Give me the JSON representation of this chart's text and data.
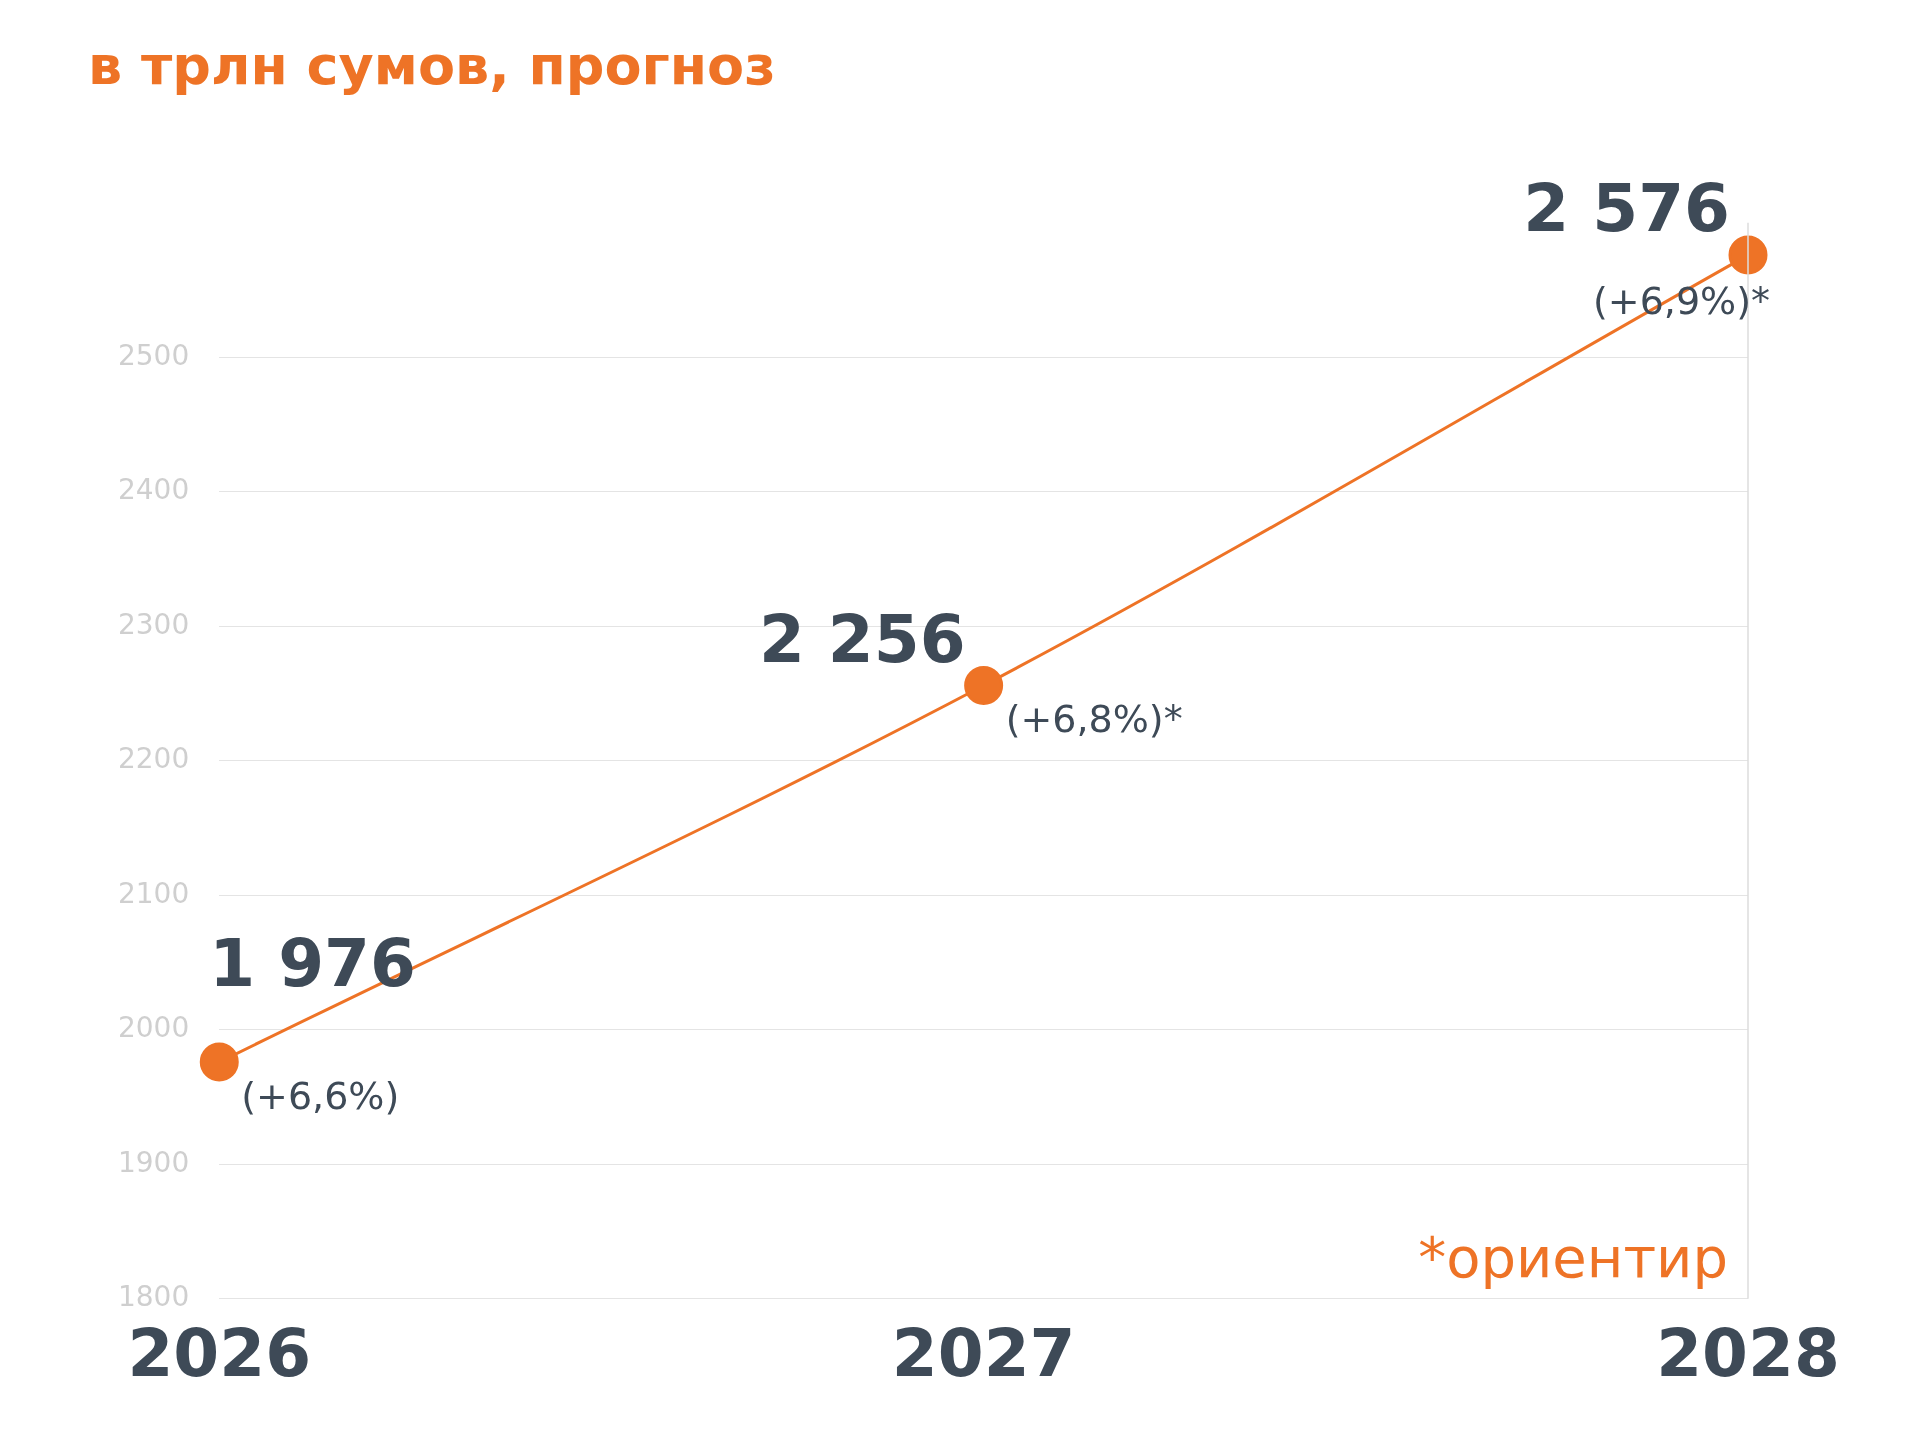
{
  "chart_data": {
    "type": "line",
    "title": "в трлн сумов, прогноз",
    "categories": [
      "2026",
      "2027",
      "2028"
    ],
    "series": [
      {
        "color": "#ee7326",
        "values": [
          1976,
          2256,
          2576
        ],
        "value_labels": [
          "1 976",
          "2 256",
          "2 576"
        ]
      }
    ],
    "ylim": [
      1800,
      2600
    ],
    "yticks": [
      1800,
      1900,
      2000,
      2100,
      2200,
      2300,
      2400,
      2500
    ],
    "grid": "y",
    "marker": "circle",
    "line_style": "solid",
    "legend": false,
    "ref_lines": [
      {
        "axis": "x",
        "value": "2028",
        "color": "#dddddd"
      }
    ],
    "annotations": [
      {
        "text": "(+6,6%)",
        "x": "2026",
        "y": 1976
      },
      {
        "text": "(+6,8%)*",
        "x": "2027",
        "y": 2256
      },
      {
        "text": "(+6,9%)*",
        "x": "2028",
        "y": 2576
      },
      "*ориентир"
    ]
  }
}
